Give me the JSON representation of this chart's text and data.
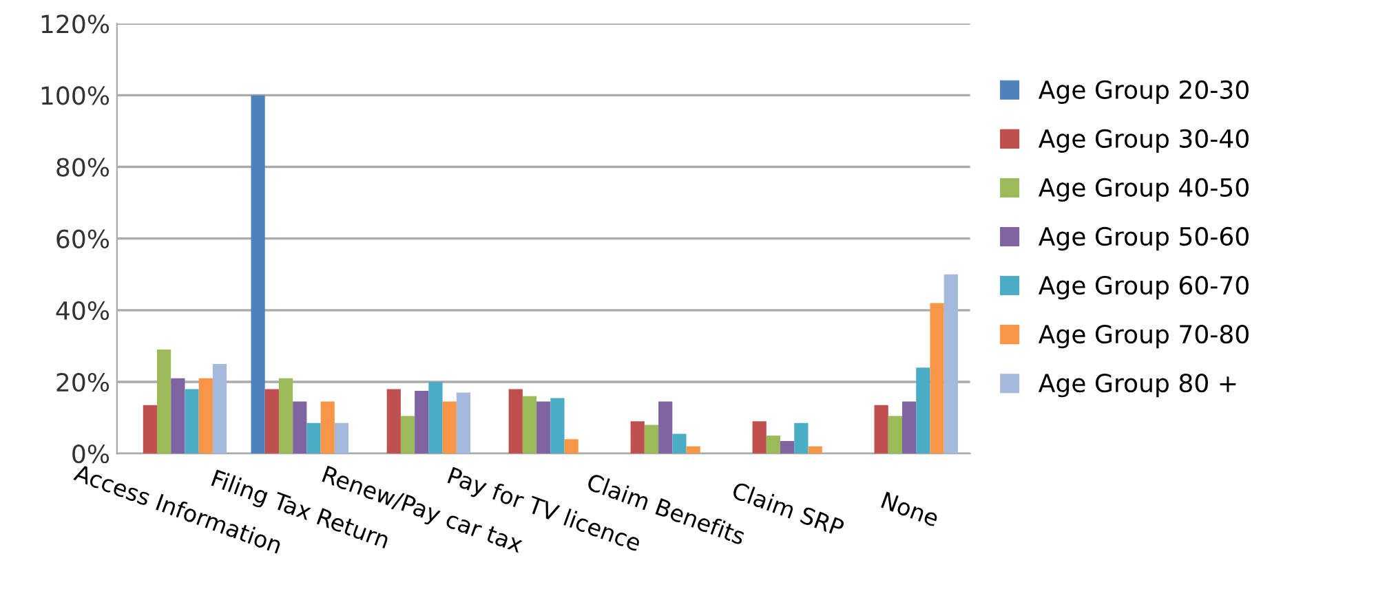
{
  "chart_data": {
    "type": "bar",
    "categories": [
      "Access Information",
      "Filing Tax Return",
      "Renew/Pay car tax",
      "Pay for TV licence",
      "Claim Benefits",
      "Claim SRP",
      "None"
    ],
    "series": [
      {
        "name": "Age Group 20-30",
        "color": "#4f81bd",
        "values": [
          null,
          100,
          null,
          null,
          null,
          null,
          null
        ]
      },
      {
        "name": "Age Group 30-40",
        "color": "#c0504d",
        "values": [
          13.5,
          18,
          18,
          18,
          9,
          9,
          13.5
        ]
      },
      {
        "name": "Age Group 40-50",
        "color": "#9bbb59",
        "values": [
          29,
          21,
          10.5,
          16,
          8,
          5,
          10.5
        ]
      },
      {
        "name": "Age Group 50-60",
        "color": "#8064a2",
        "values": [
          21,
          14.5,
          17.5,
          14.5,
          14.5,
          3.5,
          14.5
        ]
      },
      {
        "name": "Age Group 60-70",
        "color": "#4bacc6",
        "values": [
          18,
          8.5,
          20,
          15.5,
          5.5,
          8.5,
          24
        ]
      },
      {
        "name": "Age Group 70-80",
        "color": "#f79646",
        "values": [
          21,
          14.5,
          14.5,
          4,
          2,
          2,
          42
        ]
      },
      {
        "name": "Age Group 80 +",
        "color": "#a5b9dc",
        "values": [
          25,
          8.5,
          17,
          null,
          null,
          null,
          50
        ]
      }
    ],
    "ylim": [
      0,
      120
    ],
    "yticks": [
      {
        "value": 0,
        "label": "0%"
      },
      {
        "value": 20,
        "label": "20%"
      },
      {
        "value": 40,
        "label": "40%"
      },
      {
        "value": 60,
        "label": "60%"
      },
      {
        "value": 80,
        "label": "80%"
      },
      {
        "value": 100,
        "label": "100%"
      },
      {
        "value": 120,
        "label": "120%"
      }
    ],
    "grid": "y",
    "legend": "right"
  }
}
